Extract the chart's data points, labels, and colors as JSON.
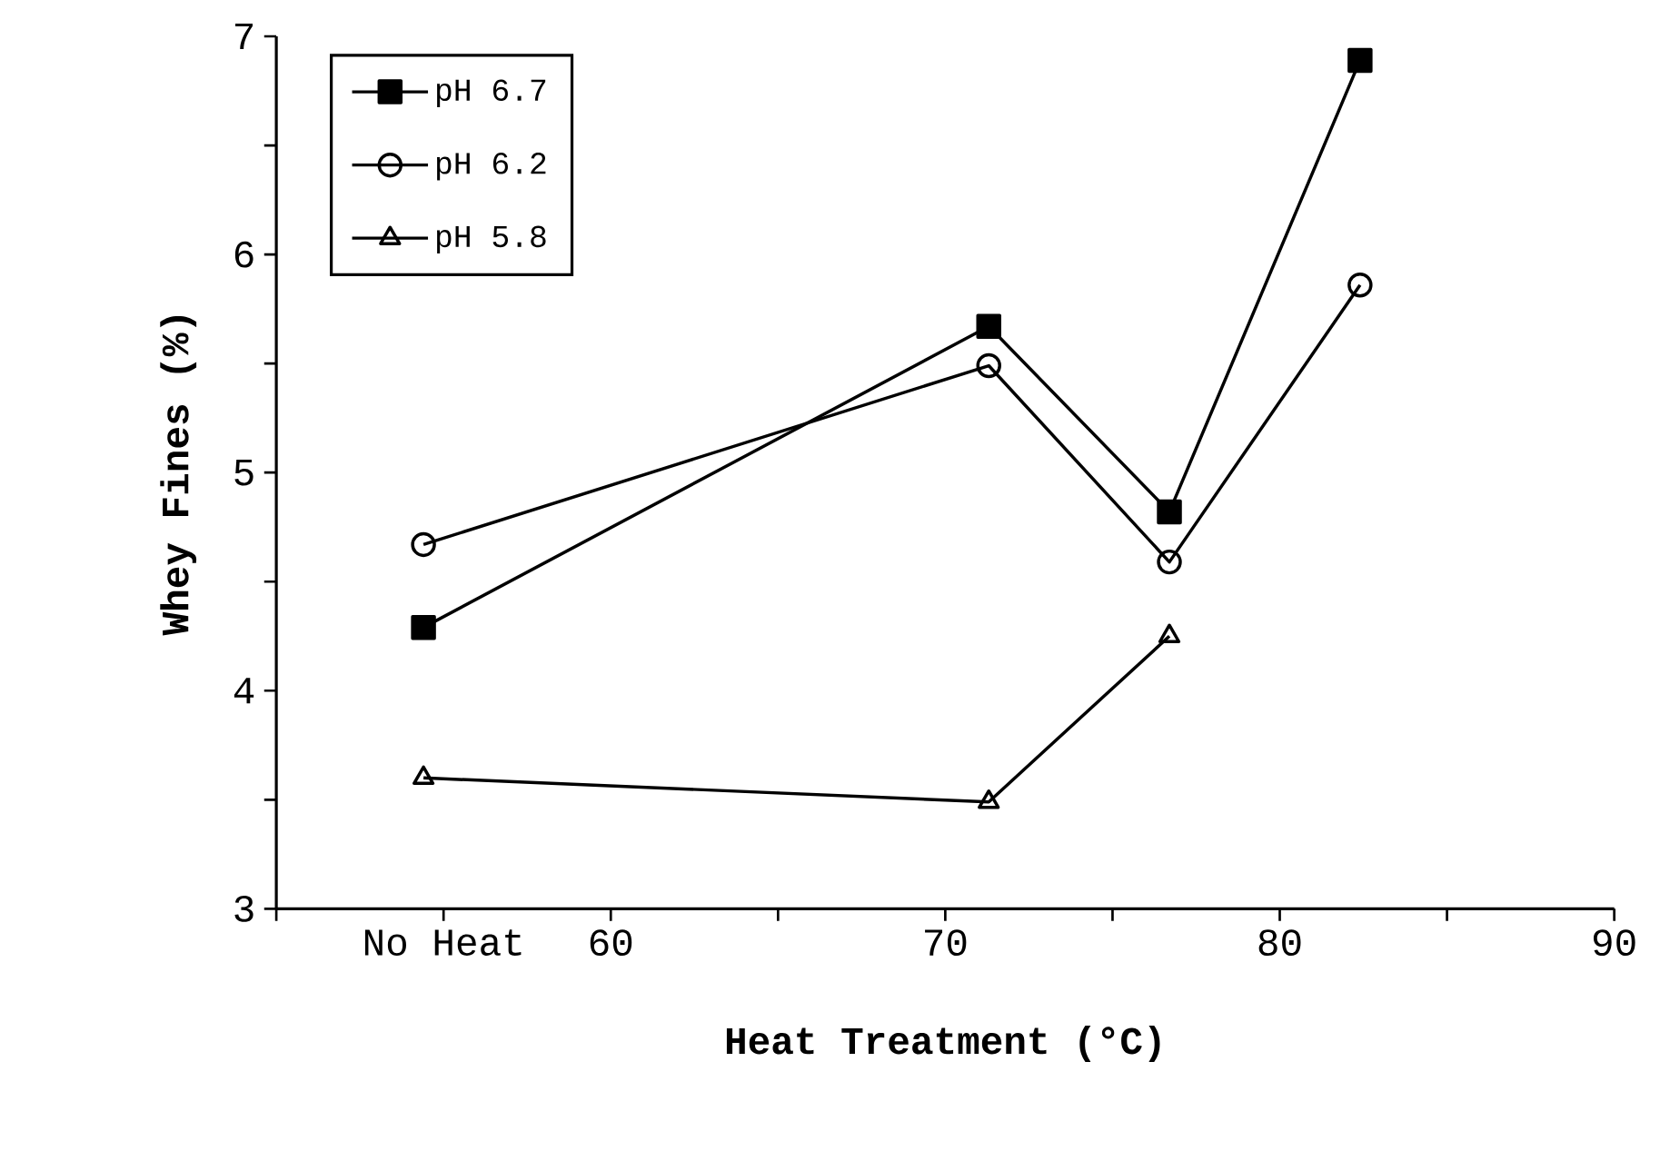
{
  "chart_data": {
    "type": "line",
    "xlabel": "Heat  Treatment  (°C)",
    "ylabel": "Whey  Fines  (%)",
    "x": [
      54.4,
      71.3,
      76.7,
      82.4
    ],
    "series": [
      {
        "name": "pH 6.7",
        "color": "#000000",
        "marker": "square",
        "values": [
          4.29,
          5.67,
          4.82,
          6.89
        ]
      },
      {
        "name": "pH 6.2",
        "color": "#000000",
        "marker": "circle",
        "values": [
          4.67,
          5.49,
          4.59,
          5.86
        ]
      },
      {
        "name": "pH 5.8",
        "color": "#000000",
        "marker": "triangle",
        "values": [
          3.6,
          3.49,
          4.25,
          null
        ]
      }
    ],
    "xlim": [
      50,
      90
    ],
    "xticks": [
      {
        "value": 50,
        "label": null
      },
      {
        "value": 55,
        "label": "No Heat"
      },
      60,
      {
        "value": 65,
        "label": null
      },
      70,
      {
        "value": 75,
        "label": null
      },
      80,
      {
        "value": 85,
        "label": null
      },
      90
    ],
    "ylim": [
      3,
      7
    ],
    "yticks": [
      3,
      {
        "value": 3.5,
        "label": null
      },
      4,
      {
        "value": 4.5,
        "label": null
      },
      5,
      {
        "value": 5.5,
        "label": null
      },
      6,
      {
        "value": 6.5,
        "label": null
      },
      7
    ],
    "legend": "top left",
    "grid": false,
    "line_style": "solid"
  }
}
